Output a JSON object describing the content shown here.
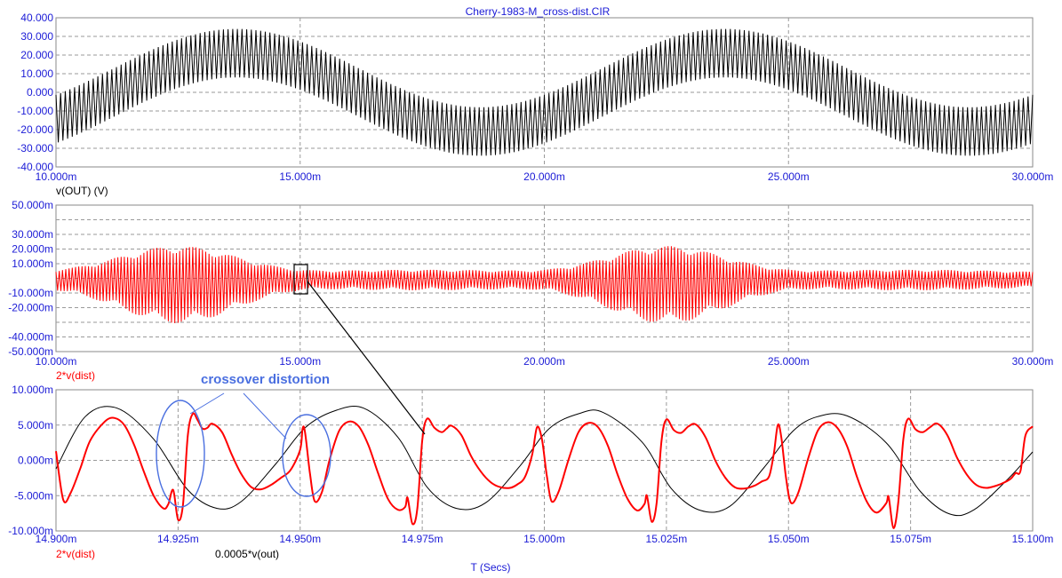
{
  "window_title": "Cherry-1983-M_cross-dist.CIR",
  "colors": {
    "text": "#1b1bd6",
    "red": "#ff0000",
    "black": "#000000",
    "annotation": "#4a6fe0"
  },
  "x_axis_label": "T (Secs)",
  "annotation_text": "crossover distortion",
  "chart_data": [
    {
      "type": "line",
      "series": [
        {
          "name": "v(OUT) (V)",
          "color": "#000000",
          "description": "high-frequency carrier with 10 kHz-ish oscillation, amplitude-modulated by a 100 Hz sine",
          "carrier_amplitude": 13,
          "envelope_center_amplitude": 21,
          "envelope_period": 0.01
        }
      ],
      "x_ticks": [
        "10.000m",
        "15.000m",
        "20.000m",
        "25.000m",
        "30.000m"
      ],
      "x_range": [
        0.01,
        0.03
      ],
      "y_ticks": [
        "40.000",
        "30.000",
        "20.000",
        "10.000",
        "0.000",
        "-10.000",
        "-20.000",
        "-30.000",
        "-40.000"
      ],
      "y_range": [
        -40,
        40
      ],
      "grid": true
    },
    {
      "type": "line",
      "series": [
        {
          "name": "2*v(dist)",
          "color": "#ff0000",
          "envelope_peaks": [
            {
              "x": 0.0125,
              "y": 23
            },
            {
              "x": 0.0225,
              "y": 23
            }
          ],
          "envelope_min": 5
        }
      ],
      "x_ticks": [
        "10.000m",
        "15.000m",
        "20.000m",
        "25.000m",
        "30.000m"
      ],
      "x_range": [
        0.01,
        0.03
      ],
      "y_ticks": [
        "50.000m",
        "30.000m",
        "20.000m",
        "10.000m",
        "-10.000m",
        "-20.000m",
        "-40.000m",
        "-50.000m"
      ],
      "y_range": [
        -0.05,
        0.05
      ],
      "grid": true
    },
    {
      "type": "line",
      "series": [
        {
          "name": "2*v(dist)",
          "color": "#ff0000"
        },
        {
          "name": "0.0005*v(out)",
          "color": "#000000"
        }
      ],
      "x_ticks": [
        "14.900m",
        "14.925m",
        "14.950m",
        "14.975m",
        "15.000m",
        "15.025m",
        "15.050m",
        "15.075m",
        "15.100m"
      ],
      "x_range": [
        0.0149,
        0.0151
      ],
      "y_ticks": [
        "10.000m",
        "5.000m",
        "0.000m",
        "-5.000m",
        "-10.000m"
      ],
      "y_range": [
        -0.01,
        0.01
      ],
      "grid": true,
      "red_points": [
        [
          14.9,
          1.3
        ],
        [
          14.9015,
          -5.6
        ],
        [
          14.903,
          -4.6
        ],
        [
          14.905,
          -1.1
        ],
        [
          14.907,
          2.8
        ],
        [
          14.91,
          5.5
        ],
        [
          14.912,
          6.0
        ],
        [
          14.914,
          5.0
        ],
        [
          14.916,
          2.2
        ],
        [
          14.918,
          -1.6
        ],
        [
          14.92,
          -5.0
        ],
        [
          14.922,
          -6.8
        ],
        [
          14.923,
          -6.2
        ],
        [
          14.924,
          -4.2
        ],
        [
          14.925,
          -8.4
        ],
        [
          14.926,
          -6.3
        ],
        [
          14.927,
          3.6
        ],
        [
          14.928,
          6.6
        ],
        [
          14.929,
          5.7
        ],
        [
          14.93,
          4.5
        ],
        [
          14.931,
          4.6
        ],
        [
          14.932,
          5.2
        ],
        [
          14.934,
          4.0
        ],
        [
          14.936,
          0.8
        ],
        [
          14.938,
          -2.0
        ],
        [
          14.94,
          -3.8
        ],
        [
          14.942,
          -4.1
        ],
        [
          14.944,
          -3.5
        ],
        [
          14.946,
          -2.5
        ],
        [
          14.948,
          -1.4
        ],
        [
          14.95,
          1.5
        ],
        [
          14.9505,
          4.5
        ],
        [
          14.951,
          4.0
        ],
        [
          14.952,
          -1.8
        ],
        [
          14.953,
          -5.8
        ],
        [
          14.9545,
          -4.4
        ],
        [
          14.956,
          0.0
        ],
        [
          14.958,
          4.2
        ],
        [
          14.96,
          5.5
        ],
        [
          14.962,
          4.8
        ],
        [
          14.964,
          2.1
        ],
        [
          14.966,
          -1.9
        ],
        [
          14.968,
          -5.5
        ],
        [
          14.97,
          -7.0
        ],
        [
          14.9715,
          -6.6
        ],
        [
          14.972,
          -5.3
        ],
        [
          14.973,
          -9.0
        ],
        [
          14.974,
          -6.8
        ],
        [
          14.975,
          2.8
        ],
        [
          14.976,
          5.9
        ],
        [
          14.9775,
          4.6
        ],
        [
          14.979,
          4.0
        ],
        [
          14.98,
          4.5
        ],
        [
          14.981,
          4.9
        ],
        [
          14.983,
          3.6
        ],
        [
          14.985,
          0.6
        ],
        [
          14.987,
          -1.6
        ],
        [
          14.989,
          -3.1
        ],
        [
          14.991,
          -3.8
        ],
        [
          14.993,
          -3.9
        ],
        [
          14.9945,
          -3.4
        ],
        [
          14.996,
          -2.4
        ],
        [
          14.9975,
          0.8
        ],
        [
          14.9985,
          4.7
        ],
        [
          14.9995,
          3.0
        ],
        [
          15.0005,
          -2.1
        ],
        [
          15.0015,
          -5.8
        ],
        [
          15.003,
          -4.3
        ],
        [
          15.005,
          0.2
        ],
        [
          15.007,
          4.0
        ],
        [
          15.009,
          5.3
        ],
        [
          15.011,
          4.7
        ],
        [
          15.013,
          2.1
        ],
        [
          15.015,
          -2.0
        ],
        [
          15.017,
          -5.4
        ],
        [
          15.019,
          -7.1
        ],
        [
          15.0205,
          -6.2
        ],
        [
          15.021,
          -5.0
        ],
        [
          15.022,
          -8.7
        ],
        [
          15.023,
          -6.0
        ],
        [
          15.024,
          2.8
        ],
        [
          15.025,
          5.8
        ],
        [
          15.0265,
          4.3
        ],
        [
          15.028,
          3.9
        ],
        [
          15.0295,
          4.8
        ],
        [
          15.031,
          5.1
        ],
        [
          15.033,
          3.3
        ],
        [
          15.035,
          0.0
        ],
        [
          15.037,
          -2.4
        ],
        [
          15.039,
          -3.8
        ],
        [
          15.041,
          -4.0
        ],
        [
          15.043,
          -3.6
        ],
        [
          15.0445,
          -3.0
        ],
        [
          15.046,
          -2.3
        ],
        [
          15.047,
          1.0
        ],
        [
          15.0478,
          5.0
        ],
        [
          15.0485,
          3.4
        ],
        [
          15.0495,
          -2.5
        ],
        [
          15.0505,
          -6.0
        ],
        [
          15.052,
          -4.6
        ],
        [
          15.054,
          0.2
        ],
        [
          15.056,
          4.2
        ],
        [
          15.058,
          5.4
        ],
        [
          15.06,
          4.6
        ],
        [
          15.062,
          2.0
        ],
        [
          15.064,
          -2.3
        ],
        [
          15.066,
          -5.8
        ],
        [
          15.068,
          -7.4
        ],
        [
          15.07,
          -6.1
        ],
        [
          15.0705,
          -5.2
        ],
        [
          15.0715,
          -9.6
        ],
        [
          15.0725,
          -5.8
        ],
        [
          15.0735,
          2.9
        ],
        [
          15.0745,
          5.9
        ],
        [
          15.076,
          4.4
        ],
        [
          15.0775,
          4.0
        ],
        [
          15.079,
          4.7
        ],
        [
          15.0805,
          5.2
        ],
        [
          15.0825,
          3.6
        ],
        [
          15.0845,
          0.4
        ],
        [
          15.0865,
          -2.0
        ],
        [
          15.0885,
          -3.5
        ],
        [
          15.0905,
          -3.9
        ],
        [
          15.0925,
          -3.6
        ],
        [
          15.094,
          -3.2
        ],
        [
          15.0955,
          -2.6
        ],
        [
          15.0965,
          -1.8
        ],
        [
          15.0975,
          -1.5
        ],
        [
          15.0985,
          3.5
        ],
        [
          15.1,
          4.8
        ]
      ],
      "black_points": [
        [
          14.9,
          -1.2
        ],
        [
          14.906,
          6.2
        ],
        [
          14.9125,
          7.4
        ],
        [
          14.92,
          3.0
        ],
        [
          14.927,
          -4.2
        ],
        [
          14.933,
          -6.8
        ],
        [
          14.938,
          -5.8
        ],
        [
          14.945,
          -0.5
        ],
        [
          14.951,
          4.6
        ],
        [
          14.957,
          7.0
        ],
        [
          14.963,
          7.4
        ],
        [
          14.97,
          3.3
        ],
        [
          14.976,
          -3.8
        ],
        [
          14.982,
          -6.8
        ],
        [
          14.988,
          -6.0
        ],
        [
          14.995,
          -0.8
        ],
        [
          15.001,
          4.5
        ],
        [
          15.007,
          6.6
        ],
        [
          15.012,
          6.8
        ],
        [
          15.02,
          2.6
        ],
        [
          15.026,
          -4.0
        ],
        [
          15.032,
          -7.1
        ],
        [
          15.038,
          -6.5
        ],
        [
          15.045,
          -1.0
        ],
        [
          15.051,
          4.2
        ],
        [
          15.056,
          6.2
        ],
        [
          15.062,
          6.3
        ],
        [
          15.07,
          2.5
        ],
        [
          15.077,
          -4.4
        ],
        [
          15.083,
          -7.6
        ],
        [
          15.088,
          -7.0
        ],
        [
          15.095,
          -2.6
        ],
        [
          15.1,
          1.2
        ]
      ]
    }
  ],
  "legend_bottom": {
    "red_label": "2*v(dist)",
    "black_label": "0.0005*v(out)"
  }
}
